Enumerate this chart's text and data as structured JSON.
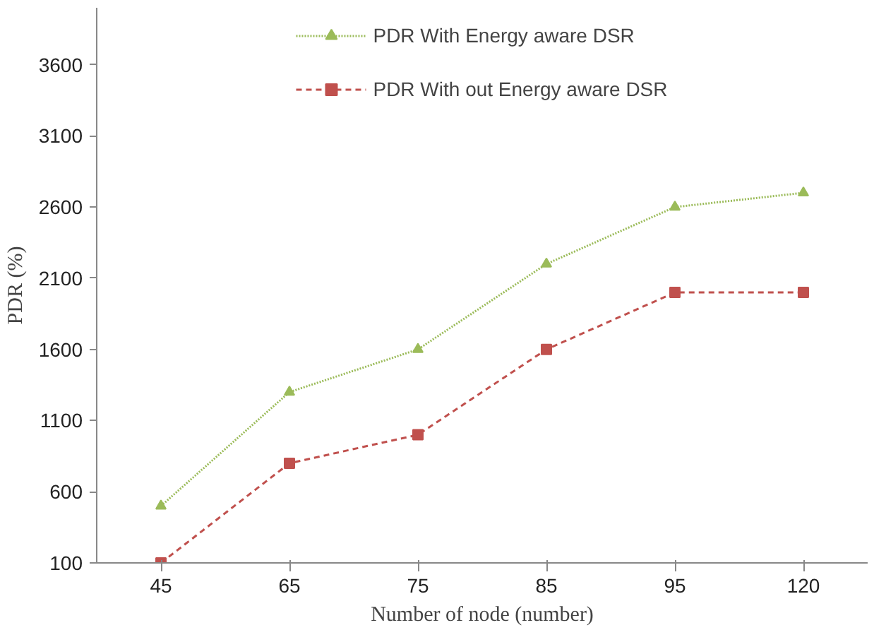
{
  "chart_data": {
    "type": "line",
    "xlabel": "Number of node (number)",
    "ylabel": "PDR (%)",
    "categories": [
      "45",
      "65",
      "75",
      "85",
      "95",
      "120"
    ],
    "series": [
      {
        "name": "PDR With Energy aware DSR",
        "color": "#9bbb59",
        "values": [
          500,
          1300,
          1600,
          2200,
          2600,
          2700
        ],
        "marker": "triangle",
        "line_style": "dotted"
      },
      {
        "name": "PDR With out Energy aware DSR",
        "color": "#c0504d",
        "values": [
          100,
          800,
          1000,
          1600,
          2000,
          2000
        ],
        "marker": "square",
        "line_style": "dashed"
      }
    ],
    "ylim": [
      100,
      4000
    ],
    "yticks": [
      100,
      600,
      1100,
      1600,
      2100,
      2600,
      3100,
      3600
    ],
    "grid": false,
    "legend": "top"
  }
}
